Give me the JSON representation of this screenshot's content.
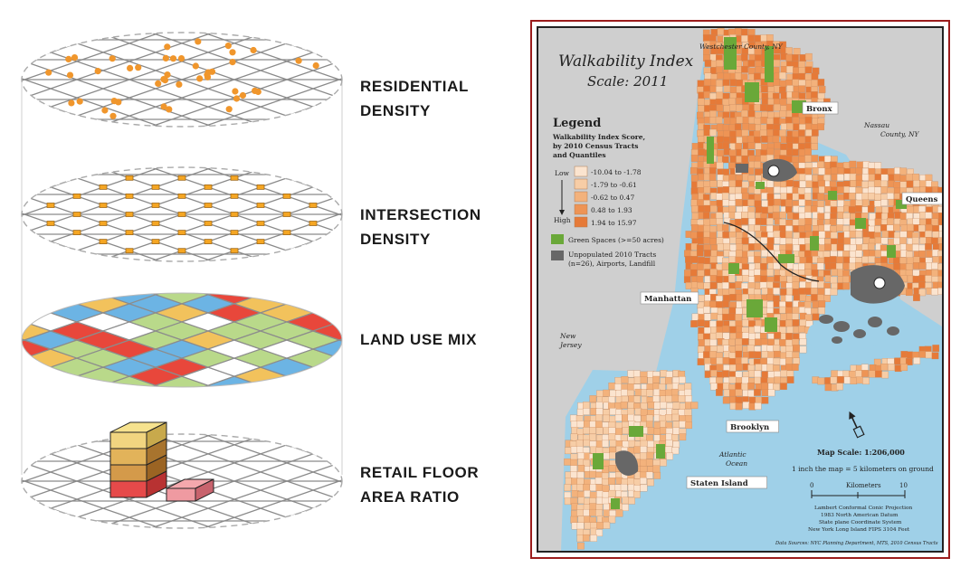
{
  "diagram": {
    "layers": [
      {
        "label_line1": "RESIDENTIAL",
        "label_line2": "DENSITY"
      },
      {
        "label_line1": "INTERSECTION",
        "label_line2": "DENSITY"
      },
      {
        "label_line1": "LAND USE MIX",
        "label_line2": ""
      },
      {
        "label_line1": "RETAIL FLOOR",
        "label_line2": "AREA RATIO"
      }
    ],
    "colors": {
      "dots": "#f0962c",
      "intersections": "#f5a623",
      "land_use": [
        "#e8473b",
        "#6cb4e4",
        "#f2c25c",
        "#b9d98a",
        "#ffffff"
      ],
      "retail": [
        "#f6e28e",
        "#c98b3a",
        "#e64a4a",
        "#f4a8ad"
      ]
    }
  },
  "map": {
    "title_line1": "Walkability Index",
    "title_line2": "Scale: 2011",
    "legend": {
      "heading": "Legend",
      "subtitle_line1": "Walkability Index Score,",
      "subtitle_line2": "by 2010 Census Tracts",
      "subtitle_line3": "and Quantiles",
      "low_label": "Low",
      "high_label": "High",
      "classes": [
        {
          "label": "-10.04 to -1.78",
          "color": "#fbe4cf"
        },
        {
          "label": "-1.79 to -0.61",
          "color": "#f7cda6"
        },
        {
          "label": "-0.62 to 0.47",
          "color": "#f3b27c"
        },
        {
          "label": "0.48 to 1.93",
          "color": "#ee9455"
        },
        {
          "label": "1.94 to 15.97",
          "color": "#e67a38"
        }
      ],
      "green_label": "Green Spaces (>=50 acres)",
      "green_color": "#6aa839",
      "unpop_label_line1": "Unpopulated 2010 Tracts",
      "unpop_label_line2": "(n=26), Airports, Landfill",
      "unpop_color": "#676767"
    },
    "places": {
      "westchester": "Westchester County, NY",
      "nassau_line1": "Nassau",
      "nassau_line2": "County, NY",
      "new_jersey_line1": "New",
      "new_jersey_line2": "Jersey",
      "atlantic_line1": "Atlantic",
      "atlantic_line2": "Ocean"
    },
    "boroughs": [
      "Bronx",
      "Queens",
      "Manhattan",
      "Brooklyn",
      "Staten Island"
    ],
    "scale": {
      "title": "Map Scale: 1:206,000",
      "equivalence": "1 inch the map = 5 kilometers on ground",
      "unit": "Kilometers",
      "tick_start": "0",
      "tick_end": "10"
    },
    "projection_lines": [
      "Lambert Conformal Conic Projection",
      "1983 North American Datum",
      "State plane Coordinate System",
      "New York Long Island FIPS 3104 Feet"
    ],
    "source": "Data Sources: NYC Planning Department, MTS, 2010 Census Tracts",
    "colors": {
      "water": "#9fd0e8",
      "land_outside": "#cfcfcf",
      "frame": "#9b1c1c"
    }
  }
}
